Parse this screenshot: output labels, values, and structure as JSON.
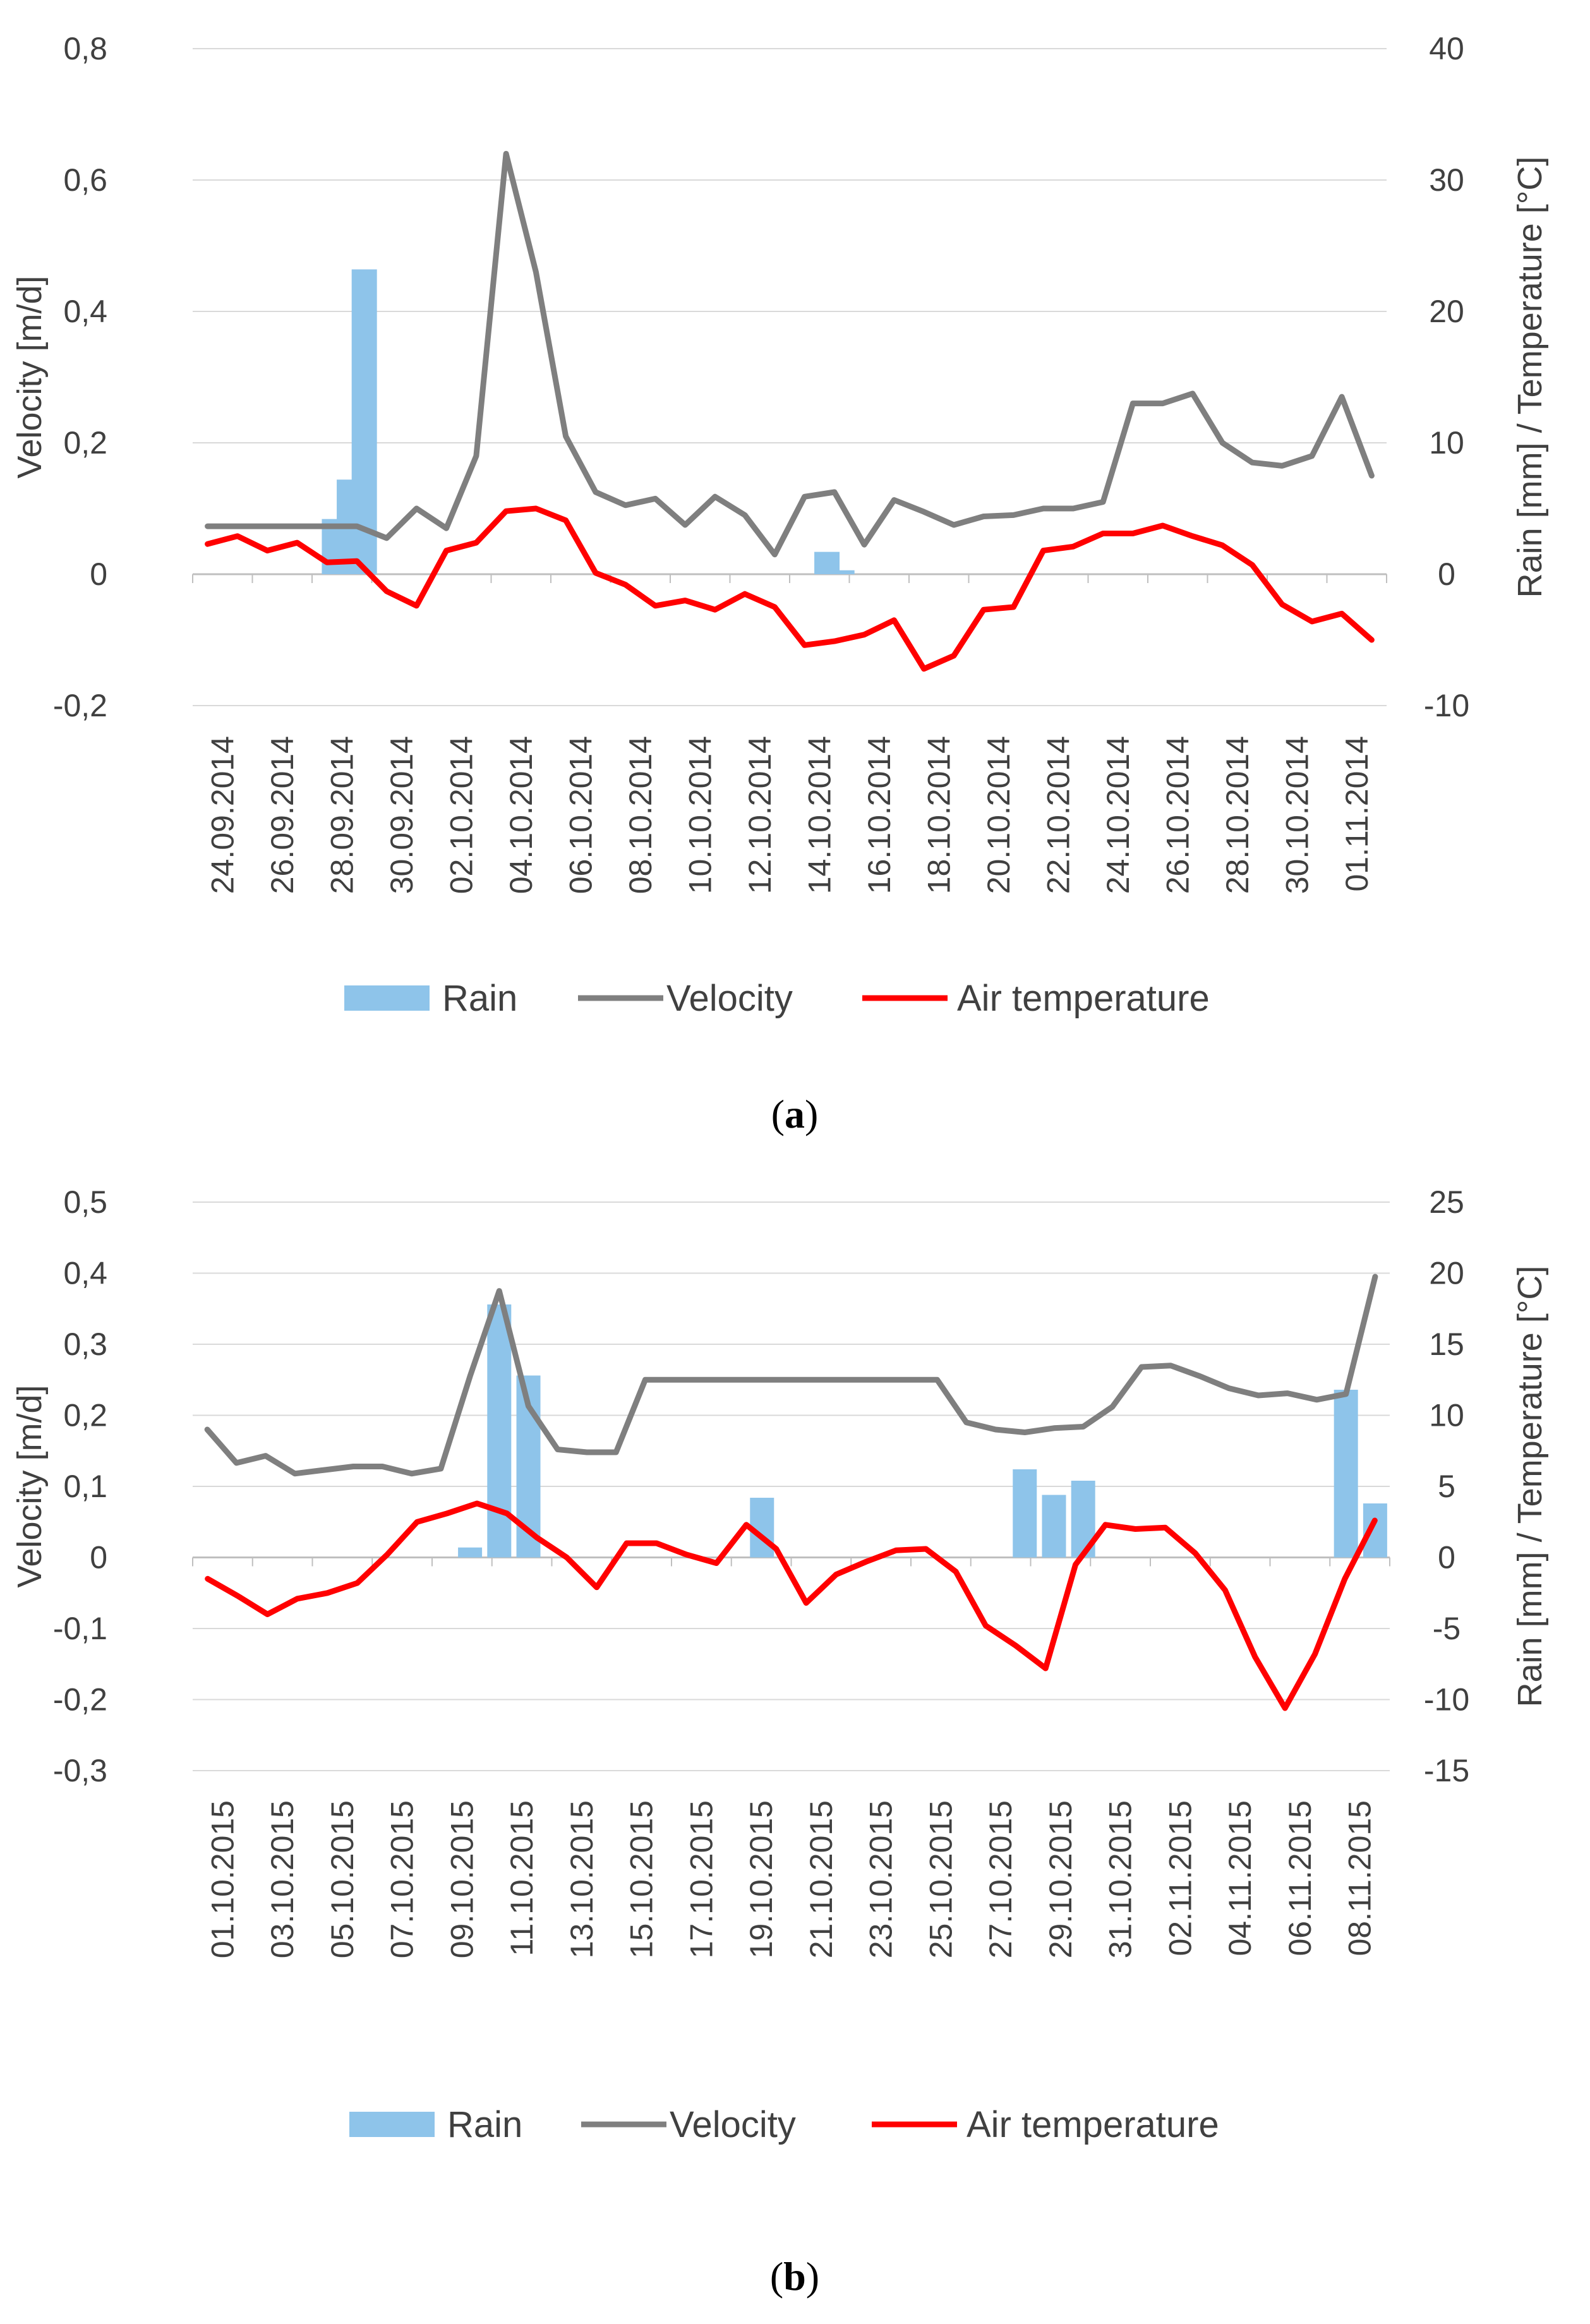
{
  "colors": {
    "rain": "#8ec4ea",
    "velocity": "#7f7f7f",
    "temperature": "#ff0000",
    "grid": "#d9d9d9",
    "axis": "#bfbfbf"
  },
  "chart_data": [
    {
      "type": "combo",
      "caption": {
        "open": "(",
        "letter": "a",
        "close": ")"
      },
      "ylabel_left": "Velocity [m/d]",
      "ylabel_right": "Rain [mm] / Temperature [°C]",
      "left_ticks": [
        "-0,2",
        "0",
        "0,2",
        "0,4",
        "0,6",
        "0,8"
      ],
      "left_tick_values": [
        -0.2,
        0,
        0.2,
        0.4,
        0.6,
        0.8
      ],
      "right_ticks": [
        "-10",
        "0",
        "10",
        "20",
        "30",
        "40"
      ],
      "ylim_left": [
        -0.2,
        0.8
      ],
      "ylim_right": [
        -10,
        40
      ],
      "x_tick_labels": [
        "24.09.2014",
        "26.09.2014",
        "28.09.2014",
        "30.09.2014",
        "02.10.2014",
        "04.10.2014",
        "06.10.2014",
        "08.10.2014",
        "10.10.2014",
        "12.10.2014",
        "14.10.2014",
        "16.10.2014",
        "18.10.2014",
        "20.10.2014",
        "22.10.2014",
        "24.10.2014",
        "26.10.2014",
        "28.10.2014",
        "30.10.2014",
        "01.11.2014"
      ],
      "series": [
        {
          "name": "Rain",
          "kind": "bar",
          "axis": "right",
          "values": [
            0,
            0,
            0,
            0,
            0,
            0,
            0,
            0,
            0,
            4.2,
            7.2,
            23.2,
            0,
            0,
            0,
            0,
            0,
            0,
            0,
            0,
            0,
            0,
            0,
            0,
            0,
            0,
            0,
            0,
            0,
            0,
            0,
            0,
            0,
            0,
            0,
            0,
            0,
            0,
            0,
            0,
            0,
            0,
            1.7,
            0.3,
            0,
            0,
            0,
            0,
            0,
            0,
            0,
            0,
            0,
            0,
            0,
            0,
            0,
            0,
            0,
            0,
            0,
            0,
            0,
            0,
            0,
            0,
            0,
            0,
            0,
            0,
            0,
            0,
            0,
            0,
            0,
            0,
            0,
            0,
            0,
            0
          ]
        },
        {
          "name": "Velocity",
          "kind": "line",
          "axis": "left",
          "values": [
            0.073,
            0.073,
            0.073,
            0.073,
            0.073,
            0.073,
            0.055,
            0.1,
            0.07,
            0.18,
            0.64,
            0.46,
            0.21,
            0.125,
            0.105,
            0.115,
            0.075,
            0.118,
            0.09,
            0.03,
            0.118,
            0.125,
            0.045,
            0.113,
            0.095,
            0.075,
            0.088,
            0.09,
            0.1,
            0.1,
            0.11,
            0.26,
            0.26,
            0.275,
            0.2,
            0.17,
            0.165,
            0.18,
            0.27,
            0.15
          ]
        },
        {
          "name": "Air temperature",
          "kind": "line",
          "axis": "right",
          "values": [
            2.3,
            2.9,
            1.8,
            2.4,
            0.9,
            1.0,
            -1.3,
            -2.4,
            1.8,
            2.4,
            4.8,
            5.0,
            4.1,
            0.1,
            -0.8,
            -2.4,
            -2.0,
            -2.7,
            -1.5,
            -2.5,
            -5.4,
            -5.1,
            -4.6,
            -3.5,
            -7.2,
            -6.2,
            -2.7,
            -2.5,
            1.8,
            2.1,
            3.1,
            3.1,
            3.7,
            2.9,
            2.2,
            0.7,
            -2.3,
            -3.6,
            -3.0,
            -5.0
          ]
        }
      ]
    },
    {
      "type": "combo",
      "caption": {
        "open": "(",
        "letter": "b",
        "close": ")"
      },
      "ylabel_left": "Velocity [m/d]",
      "ylabel_right": "Rain [mm] / Temperature [°C]",
      "left_ticks": [
        "-0,3",
        "-0,2",
        "-0,1",
        "0",
        "0,1",
        "0,2",
        "0,3",
        "0,4",
        "0,5"
      ],
      "left_tick_values": [
        -0.3,
        -0.2,
        -0.1,
        0,
        0.1,
        0.2,
        0.3,
        0.4,
        0.5
      ],
      "right_ticks": [
        "-15",
        "-10",
        "-5",
        "0",
        "5",
        "10",
        "15",
        "20",
        "25"
      ],
      "ylim_left": [
        -0.3,
        0.5
      ],
      "ylim_right": [
        -15,
        25
      ],
      "x_tick_labels": [
        "01.10.2015",
        "03.10.2015",
        "05.10.2015",
        "07.10.2015",
        "09.10.2015",
        "11.10.2015",
        "13.10.2015",
        "15.10.2015",
        "17.10.2015",
        "19.10.2015",
        "21.10.2015",
        "23.10.2015",
        "25.10.2015",
        "27.10.2015",
        "29.10.2015",
        "31.10.2015",
        "02.11.2015",
        "04.11.2015",
        "06.11.2015",
        "08.11.2015"
      ],
      "series": [
        {
          "name": "Rain",
          "kind": "bar",
          "axis": "right",
          "values": [
            0,
            0,
            0,
            0,
            0,
            0,
            0,
            0,
            0,
            0.7,
            17.8,
            12.8,
            0,
            0,
            0,
            0,
            0,
            0,
            0,
            4.2,
            0,
            0,
            0,
            0,
            0,
            0,
            0,
            0,
            6.2,
            4.4,
            5.4,
            0,
            0,
            0,
            0,
            0,
            0,
            0,
            0,
            11.8,
            3.8
          ]
        },
        {
          "name": "Velocity",
          "kind": "line",
          "axis": "left",
          "values": [
            0.18,
            0.133,
            0.143,
            0.118,
            0.123,
            0.128,
            0.128,
            0.118,
            0.125,
            0.255,
            0.375,
            0.213,
            0.152,
            0.148,
            0.148,
            0.25,
            0.25,
            0.25,
            0.25,
            0.25,
            0.25,
            0.25,
            0.25,
            0.25,
            0.25,
            0.25,
            0.19,
            0.18,
            0.176,
            0.182,
            0.184,
            0.212,
            0.268,
            0.27,
            0.255,
            0.238,
            0.228,
            0.231,
            0.222,
            0.23,
            0.395
          ]
        },
        {
          "name": "Air temperature",
          "kind": "line",
          "axis": "right",
          "values": [
            -1.5,
            -2.7,
            -4.0,
            -2.9,
            -2.5,
            -1.8,
            0.2,
            2.5,
            3.1,
            3.8,
            3.1,
            1.4,
            0.0,
            -2.1,
            1.0,
            1.0,
            0.2,
            -0.4,
            2.3,
            0.6,
            -3.2,
            -1.2,
            -0.3,
            0.5,
            0.6,
            -1.0,
            -4.8,
            -6.2,
            -7.8,
            -0.5,
            2.3,
            2.0,
            2.1,
            0.3,
            -2.3,
            -7.0,
            -10.6,
            -6.8,
            -1.5,
            2.6
          ]
        }
      ]
    }
  ],
  "legend": {
    "rain": "Rain",
    "velocity": "Velocity",
    "temperature": "Air temperature"
  }
}
